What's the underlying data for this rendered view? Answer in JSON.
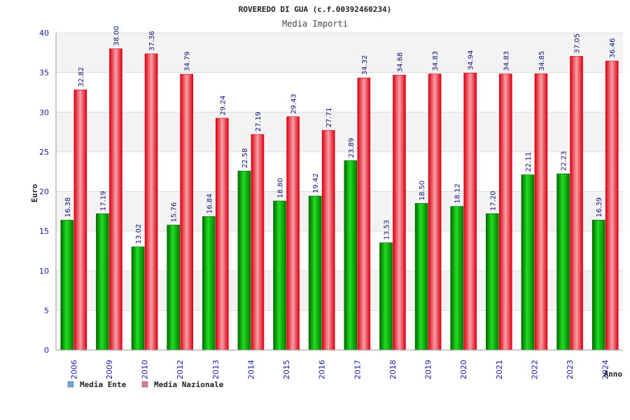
{
  "chart_data": {
    "type": "bar",
    "title": "ROVEREDO DI GUA (c.f.00392460234)",
    "subtitle": "Media Importi",
    "xlabel": "Anno",
    "ylabel": "Euro",
    "ylim": [
      0,
      40
    ],
    "yticks": [
      0,
      5,
      10,
      15,
      20,
      25,
      30,
      35,
      40
    ],
    "grid": true,
    "legend_position": "bottom-left",
    "categories": [
      "2006",
      "2009",
      "2010",
      "2012",
      "2013",
      "2014",
      "2015",
      "2016",
      "2017",
      "2018",
      "2019",
      "2020",
      "2021",
      "2022",
      "2023",
      "2024"
    ],
    "series": [
      {
        "name": "Media Ente",
        "color": "#00b000",
        "legend_color": "#6aa6e8",
        "values": [
          16.38,
          17.19,
          13.02,
          15.76,
          16.84,
          22.58,
          18.8,
          19.42,
          23.89,
          13.53,
          18.5,
          18.12,
          17.2,
          22.11,
          22.23,
          16.39
        ],
        "labels": [
          "16.38",
          "17.19",
          "13.02",
          "15.76",
          "16.84",
          "22.58",
          "18.80",
          "19.42",
          "23.89",
          "13.53",
          "18.50",
          "18.12",
          "17.20",
          "22.11",
          "22.23",
          "16.39"
        ]
      },
      {
        "name": "Media Nazionale",
        "color": "#e8101c",
        "legend_color": "#e07aa0",
        "values": [
          32.82,
          38.0,
          37.36,
          34.79,
          29.24,
          27.19,
          29.43,
          27.71,
          34.32,
          34.68,
          34.83,
          34.94,
          34.83,
          34.85,
          37.05,
          36.46
        ],
        "labels": [
          "32.82",
          "38.00",
          "37.36",
          "34.79",
          "29.24",
          "27.19",
          "29.43",
          "27.71",
          "34.32",
          "34.68",
          "34.83",
          "34.94",
          "34.83",
          "34.85",
          "37.05",
          "36.46"
        ]
      }
    ]
  }
}
